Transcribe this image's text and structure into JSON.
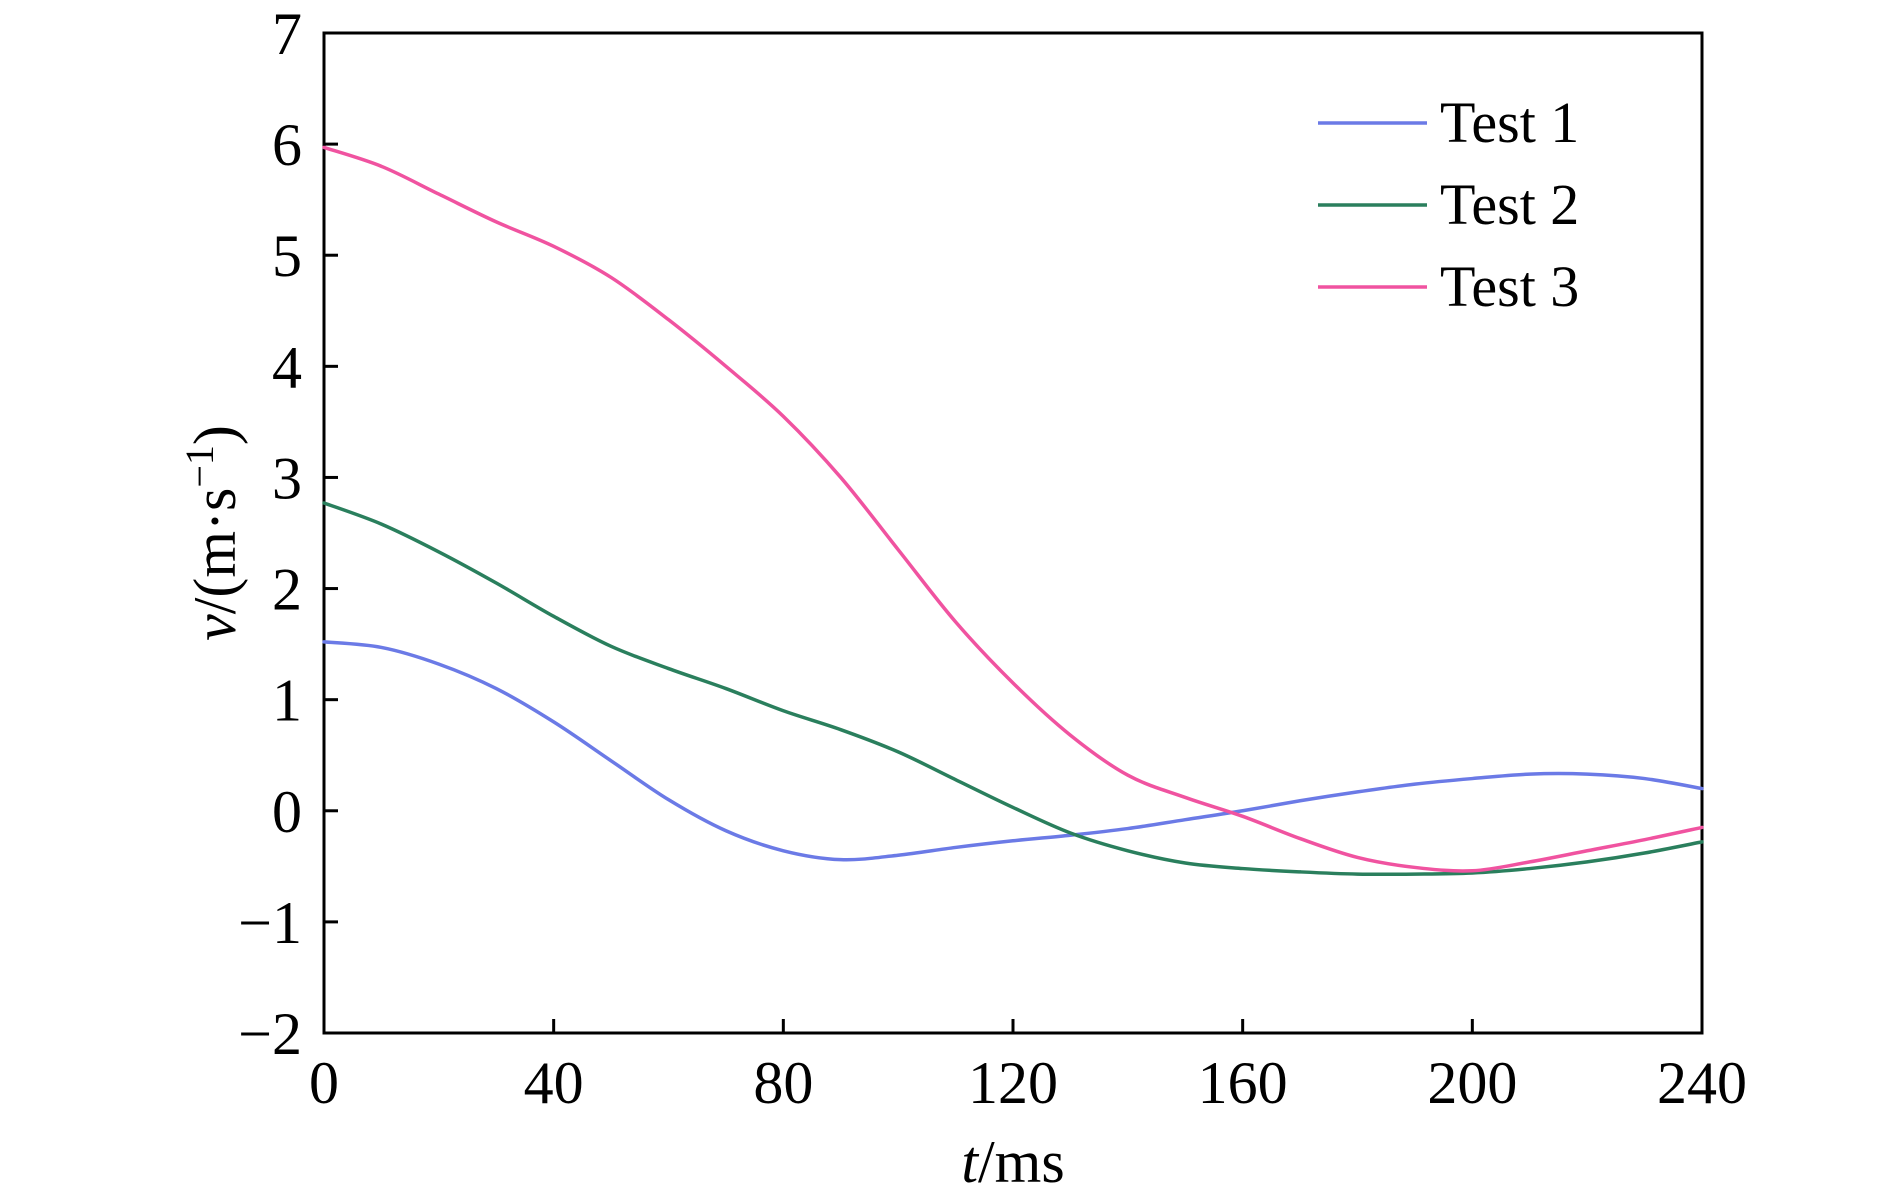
{
  "chart_data": {
    "type": "line",
    "xlabel": {
      "var": "t",
      "unit": "/ms"
    },
    "ylabel": {
      "var": "v",
      "unit_pre": "/(m·s",
      "unit_sup": "−1",
      "unit_post": ")"
    },
    "xlim": [
      0,
      240
    ],
    "ylim": [
      -2,
      7
    ],
    "xticks": [
      0,
      40,
      80,
      120,
      160,
      200,
      240
    ],
    "yticks": [
      -2,
      -1,
      0,
      1,
      2,
      3,
      4,
      5,
      6,
      7
    ],
    "ytick_labels": [
      "−2",
      "−1",
      "0",
      "1",
      "2",
      "3",
      "4",
      "5",
      "6",
      "7"
    ],
    "grid": false,
    "legend_position": "top-right",
    "series": [
      {
        "name": "Test 1",
        "color": "#6b7ae6",
        "x": [
          0,
          10,
          20,
          30,
          40,
          50,
          60,
          70,
          80,
          90,
          100,
          110,
          120,
          130,
          140,
          150,
          160,
          170,
          180,
          190,
          200,
          210,
          220,
          230,
          240
        ],
        "y": [
          1.52,
          1.47,
          1.32,
          1.1,
          0.8,
          0.45,
          0.1,
          -0.18,
          -0.36,
          -0.44,
          -0.4,
          -0.33,
          -0.27,
          -0.22,
          -0.16,
          -0.08,
          0.0,
          0.09,
          0.17,
          0.24,
          0.29,
          0.33,
          0.33,
          0.29,
          0.2
        ]
      },
      {
        "name": "Test 2",
        "color": "#2a7f5d",
        "x": [
          0,
          10,
          20,
          30,
          40,
          50,
          60,
          70,
          80,
          90,
          100,
          110,
          120,
          130,
          140,
          150,
          160,
          170,
          180,
          190,
          200,
          210,
          220,
          230,
          240
        ],
        "y": [
          2.77,
          2.58,
          2.33,
          2.05,
          1.75,
          1.48,
          1.28,
          1.1,
          0.9,
          0.73,
          0.53,
          0.28,
          0.03,
          -0.2,
          -0.36,
          -0.47,
          -0.52,
          -0.55,
          -0.57,
          -0.57,
          -0.56,
          -0.52,
          -0.46,
          -0.38,
          -0.28
        ]
      },
      {
        "name": "Test 3",
        "color": "#f053a0",
        "x": [
          0,
          10,
          20,
          30,
          40,
          50,
          60,
          70,
          80,
          90,
          100,
          110,
          120,
          130,
          140,
          150,
          160,
          170,
          180,
          190,
          200,
          210,
          220,
          230,
          240
        ],
        "y": [
          5.97,
          5.8,
          5.55,
          5.3,
          5.08,
          4.8,
          4.42,
          4.0,
          3.55,
          3.0,
          2.35,
          1.7,
          1.15,
          0.68,
          0.32,
          0.12,
          -0.05,
          -0.25,
          -0.42,
          -0.51,
          -0.54,
          -0.46,
          -0.36,
          -0.26,
          -0.15
        ]
      }
    ]
  }
}
